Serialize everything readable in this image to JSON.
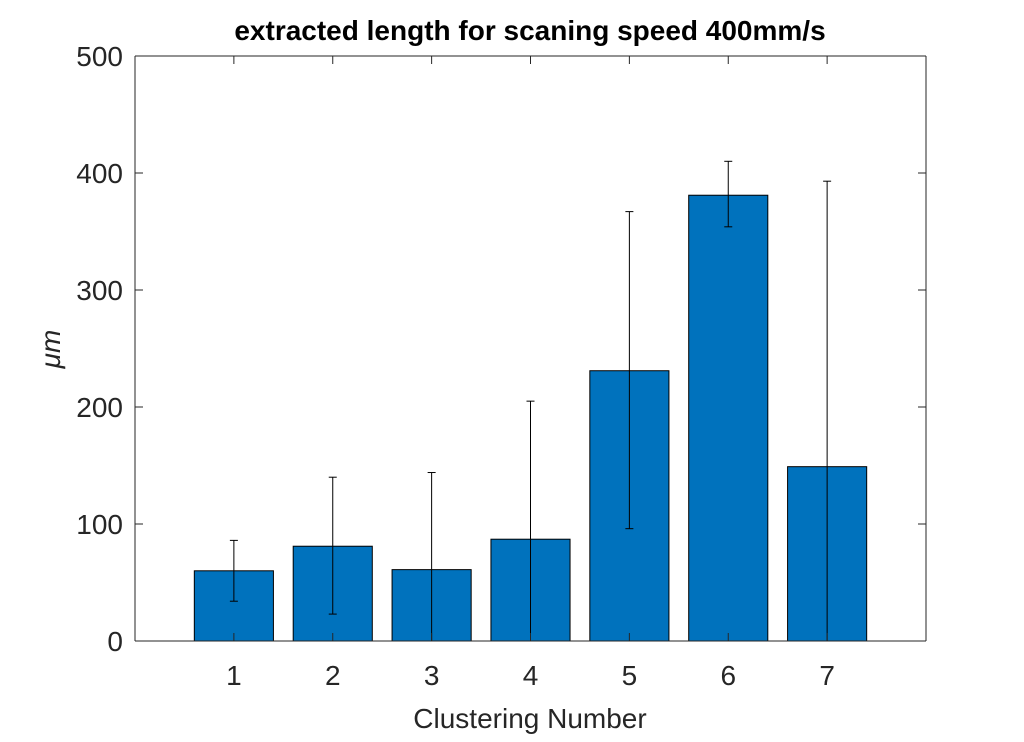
{
  "chart_data": {
    "type": "bar",
    "title": "extracted length for scaning speed 400mm/s",
    "xlabel": "Clustering Number",
    "ylabel": "μm",
    "categories": [
      "1",
      "2",
      "3",
      "4",
      "5",
      "6",
      "7"
    ],
    "values": [
      60,
      81,
      61,
      87,
      231,
      381,
      149
    ],
    "error_bars": {
      "lower": [
        34,
        23,
        0,
        0,
        96,
        354,
        0
      ],
      "upper": [
        86,
        140,
        144,
        205,
        367,
        410,
        393
      ]
    },
    "xlim": [
      0,
      8
    ],
    "ylim": [
      0,
      500
    ],
    "yticks": [
      0,
      100,
      200,
      300,
      400,
      500
    ],
    "bar_color": "#0072BD",
    "grid": false,
    "box": true
  }
}
